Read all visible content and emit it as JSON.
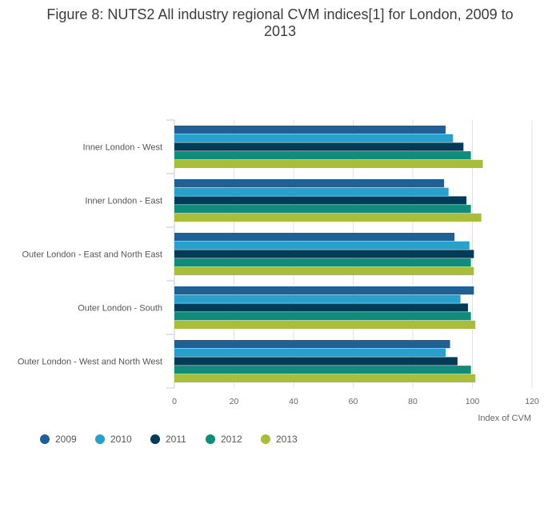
{
  "chart_data": {
    "type": "bar",
    "orientation": "horizontal",
    "title_lines": [
      "Figure 8: NUTS2 All industry regional CVM indices[1] for London, 2009 to",
      "2013"
    ],
    "categories": [
      "Inner London - West",
      "Inner London - East",
      "Outer London - East and North East",
      "Outer London - South",
      "Outer London - West and North West"
    ],
    "series": [
      {
        "name": "2009",
        "color": "#206095",
        "values": [
          91,
          90.5,
          94,
          100.5,
          92.5
        ]
      },
      {
        "name": "2010",
        "color": "#27a0cc",
        "values": [
          93.5,
          92,
          99,
          96,
          91
        ]
      },
      {
        "name": "2011",
        "color": "#003c57",
        "values": [
          97,
          98,
          100.5,
          98.5,
          95
        ]
      },
      {
        "name": "2012",
        "color": "#118c7b",
        "values": [
          99.5,
          99.5,
          99.5,
          99.5,
          99.5
        ]
      },
      {
        "name": "2013",
        "color": "#a8bd3a",
        "values": [
          103.5,
          103,
          100.5,
          101,
          101
        ]
      }
    ],
    "xlim": [
      0,
      120
    ],
    "xticks": [
      0,
      20,
      40,
      60,
      80,
      100,
      120
    ],
    "xlabel": "Index of CVM",
    "ylabel": "",
    "grid": true,
    "legend_position": "bottom-left"
  }
}
